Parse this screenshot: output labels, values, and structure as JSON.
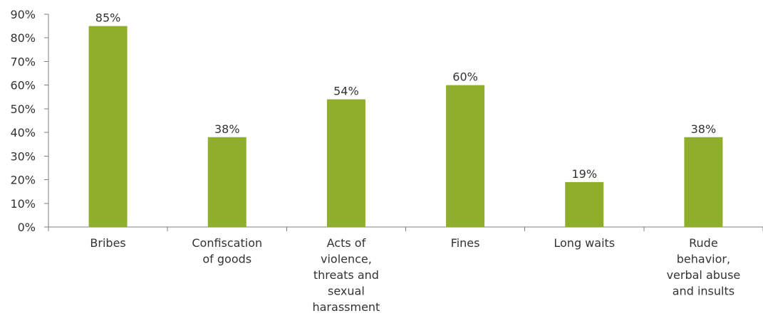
{
  "chart_data": {
    "type": "bar",
    "categories": [
      [
        "Bribes"
      ],
      [
        "Confiscation",
        "of goods"
      ],
      [
        "Acts of",
        "violence,",
        "threats and",
        "sexual",
        "harassment"
      ],
      [
        "Fines"
      ],
      [
        "Long waits"
      ],
      [
        "Rude",
        "behavior,",
        "verbal abuse",
        "and insults"
      ]
    ],
    "values": [
      85,
      38,
      54,
      60,
      19,
      38
    ],
    "data_labels": [
      "85%",
      "38%",
      "54%",
      "60%",
      "19%",
      "38%"
    ],
    "ylim": [
      0,
      90
    ],
    "yticks": [
      0,
      10,
      20,
      30,
      40,
      50,
      60,
      70,
      80,
      90
    ],
    "ytick_labels": [
      "0%",
      "10%",
      "20%",
      "30%",
      "40%",
      "50%",
      "60%",
      "70%",
      "80%",
      "90%"
    ],
    "bar_color": "#8fae2c",
    "grid": false,
    "legend": "none",
    "title": "",
    "xlabel": "",
    "ylabel": ""
  }
}
